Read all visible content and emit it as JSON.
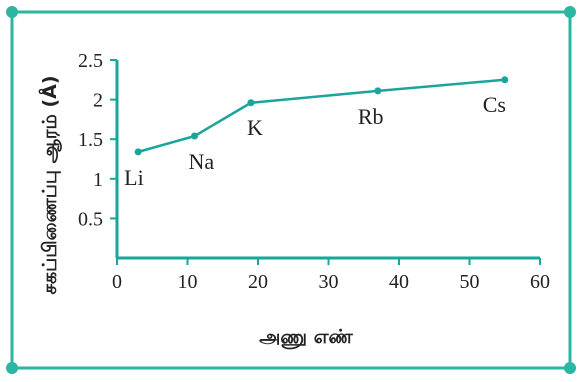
{
  "chart_data": {
    "type": "line",
    "title": "",
    "xlabel": "அணு எண்",
    "ylabel": "சகப்பிணைப்பு ஆரம் (Å)",
    "xlim": [
      0,
      60
    ],
    "ylim": [
      0,
      2.5
    ],
    "x_ticks": [
      "0",
      "10",
      "20",
      "30",
      "40",
      "50",
      "60"
    ],
    "y_ticks": [
      "0.5",
      "1",
      "1.5",
      "2",
      "2.5"
    ],
    "grid": false,
    "series": [
      {
        "x": [
          3,
          11,
          19,
          37,
          55
        ],
        "y": [
          1.34,
          1.54,
          1.96,
          2.11,
          2.25
        ],
        "point_labels": [
          "Li",
          "Na",
          "K",
          "Rb",
          "Cs"
        ]
      }
    ],
    "colors": {
      "line": "#1aa59a",
      "axis": "#1aa59a",
      "frame": "#2bb5a3"
    }
  }
}
